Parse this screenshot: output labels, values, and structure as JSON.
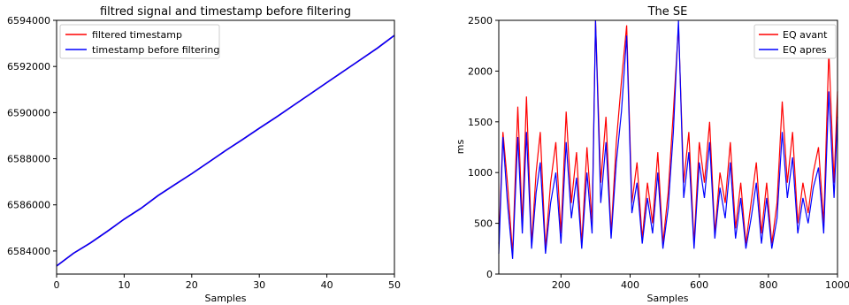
{
  "chart_data": [
    {
      "type": "line",
      "title": "filtred signal and timestamp before filtering",
      "xlabel": "Samples",
      "ylabel": "",
      "xlim": [
        0,
        50
      ],
      "ylim": [
        6583000,
        6594000
      ],
      "xticks": [
        0,
        10,
        20,
        30,
        40,
        50
      ],
      "yticks": [
        6584000,
        6586000,
        6588000,
        6590000,
        6592000,
        6594000
      ],
      "legend_position": "top-left",
      "grid": false,
      "series": [
        {
          "name": "filtered timestamp",
          "color": "#ff0000",
          "x": [
            0,
            2.5,
            5,
            7.5,
            10,
            12.5,
            15,
            17.5,
            20,
            22.5,
            25,
            27.5,
            30,
            32.5,
            35,
            37.5,
            40,
            42.5,
            45,
            47.5,
            50
          ],
          "y": [
            6583350,
            6583900,
            6584350,
            6584850,
            6585380,
            6585850,
            6586400,
            6586880,
            6587350,
            6587850,
            6588350,
            6588830,
            6589320,
            6589800,
            6590300,
            6590800,
            6591300,
            6591800,
            6592300,
            6592800,
            6593350
          ]
        },
        {
          "name": "timestamp before filtering",
          "color": "#0000ff",
          "x": [
            0,
            2.5,
            5,
            7.5,
            10,
            12.5,
            15,
            17.5,
            20,
            22.5,
            25,
            27.5,
            30,
            32.5,
            35,
            37.5,
            40,
            42.5,
            45,
            47.5,
            50
          ],
          "y": [
            6583350,
            6583900,
            6584350,
            6584850,
            6585380,
            6585850,
            6586400,
            6586880,
            6587350,
            6587850,
            6588350,
            6588830,
            6589320,
            6589800,
            6590300,
            6590800,
            6591300,
            6591800,
            6592300,
            6592800,
            6593350
          ]
        }
      ]
    },
    {
      "type": "line",
      "title": "The SE",
      "xlabel": "Samples",
      "ylabel": "ms",
      "xlim": [
        20,
        1000
      ],
      "ylim": [
        0,
        2500
      ],
      "xticks": [
        200,
        400,
        600,
        800,
        1000
      ],
      "yticks": [
        0,
        500,
        1000,
        1500,
        2000,
        2500
      ],
      "legend_position": "top-right",
      "grid": false,
      "series": [
        {
          "name": "EQ avant",
          "color": "#ff0000",
          "x": [
            20,
            32,
            45,
            60,
            75,
            88,
            100,
            115,
            128,
            140,
            155,
            170,
            185,
            200,
            215,
            230,
            245,
            260,
            275,
            290,
            300,
            315,
            330,
            345,
            360,
            375,
            390,
            405,
            420,
            435,
            450,
            465,
            480,
            495,
            510,
            525,
            540,
            555,
            570,
            585,
            600,
            615,
            630,
            645,
            660,
            675,
            690,
            705,
            720,
            735,
            750,
            765,
            780,
            795,
            810,
            825,
            840,
            855,
            870,
            885,
            900,
            915,
            930,
            945,
            960,
            975,
            990,
            1000
          ],
          "y": [
            300,
            1400,
            900,
            200,
            1650,
            500,
            1750,
            300,
            1000,
            1400,
            250,
            900,
            1300,
            400,
            1600,
            700,
            1200,
            300,
            1250,
            500,
            2500,
            900,
            1550,
            400,
            1300,
            1900,
            2450,
            700,
            1100,
            350,
            900,
            500,
            1200,
            300,
            800,
            1600,
            2450,
            900,
            1400,
            300,
            1300,
            900,
            1500,
            400,
            1000,
            700,
            1300,
            450,
            900,
            300,
            700,
            1100,
            400,
            900,
            300,
            700,
            1700,
            900,
            1400,
            500,
            900,
            600,
            1000,
            1250,
            500,
            2200,
            900,
            1800
          ]
        },
        {
          "name": "EQ apres",
          "color": "#0000ff",
          "x": [
            20,
            32,
            45,
            60,
            75,
            88,
            100,
            115,
            128,
            140,
            155,
            170,
            185,
            200,
            215,
            230,
            245,
            260,
            275,
            290,
            300,
            315,
            330,
            345,
            360,
            375,
            390,
            405,
            420,
            435,
            450,
            465,
            480,
            495,
            510,
            525,
            540,
            555,
            570,
            585,
            600,
            615,
            630,
            645,
            660,
            675,
            690,
            705,
            720,
            735,
            750,
            765,
            780,
            795,
            810,
            825,
            840,
            855,
            870,
            885,
            900,
            915,
            930,
            945,
            960,
            975,
            990,
            1000
          ],
          "y": [
            200,
            1350,
            700,
            150,
            1350,
            400,
            1400,
            250,
            800,
            1100,
            200,
            700,
            1000,
            300,
            1300,
            550,
            950,
            250,
            1000,
            400,
            2500,
            700,
            1300,
            350,
            1100,
            1600,
            2350,
            600,
            900,
            300,
            750,
            400,
            1000,
            250,
            650,
            1400,
            2500,
            750,
            1200,
            250,
            1100,
            750,
            1300,
            350,
            850,
            550,
            1100,
            350,
            750,
            250,
            550,
            900,
            300,
            750,
            250,
            550,
            1400,
            750,
            1150,
            400,
            750,
            500,
            850,
            1050,
            400,
            1800,
            750,
            1550
          ]
        }
      ]
    }
  ]
}
